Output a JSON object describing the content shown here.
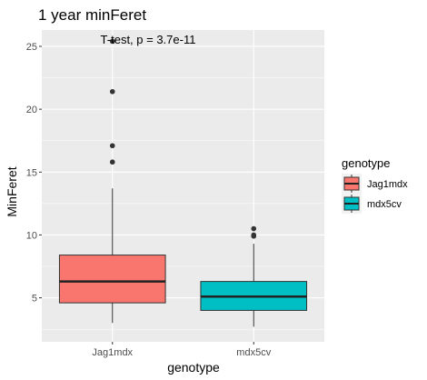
{
  "chart_data": {
    "type": "box",
    "title": "1 year minFeret",
    "xlabel": "genotype",
    "ylabel": "MinFeret",
    "ylim": [
      1.5,
      26.3
    ],
    "y_ticks": [
      5,
      10,
      15,
      20,
      25
    ],
    "categories": [
      "Jag1mdx",
      "mdx5cv"
    ],
    "annotation": "T-test, p = 3.7e-11",
    "legend": {
      "title": "genotype",
      "entries": [
        "Jag1mdx",
        "mdx5cv"
      ],
      "position": "right"
    },
    "colors": {
      "Jag1mdx": "#f8766d",
      "mdx5cv": "#00bfc4",
      "panel": "#ebebeb",
      "grid": "#ffffff"
    },
    "series": [
      {
        "name": "Jag1mdx",
        "whisker_low": 3.0,
        "q1": 4.6,
        "median": 6.3,
        "q3": 8.4,
        "whisker_high": 13.7,
        "outliers": [
          15.8,
          17.1,
          21.4,
          25.4
        ]
      },
      {
        "name": "mdx5cv",
        "whisker_low": 2.7,
        "q1": 4.0,
        "median": 5.1,
        "q3": 6.3,
        "whisker_high": 9.3,
        "outliers": [
          9.9,
          10.0,
          10.5
        ]
      }
    ]
  }
}
